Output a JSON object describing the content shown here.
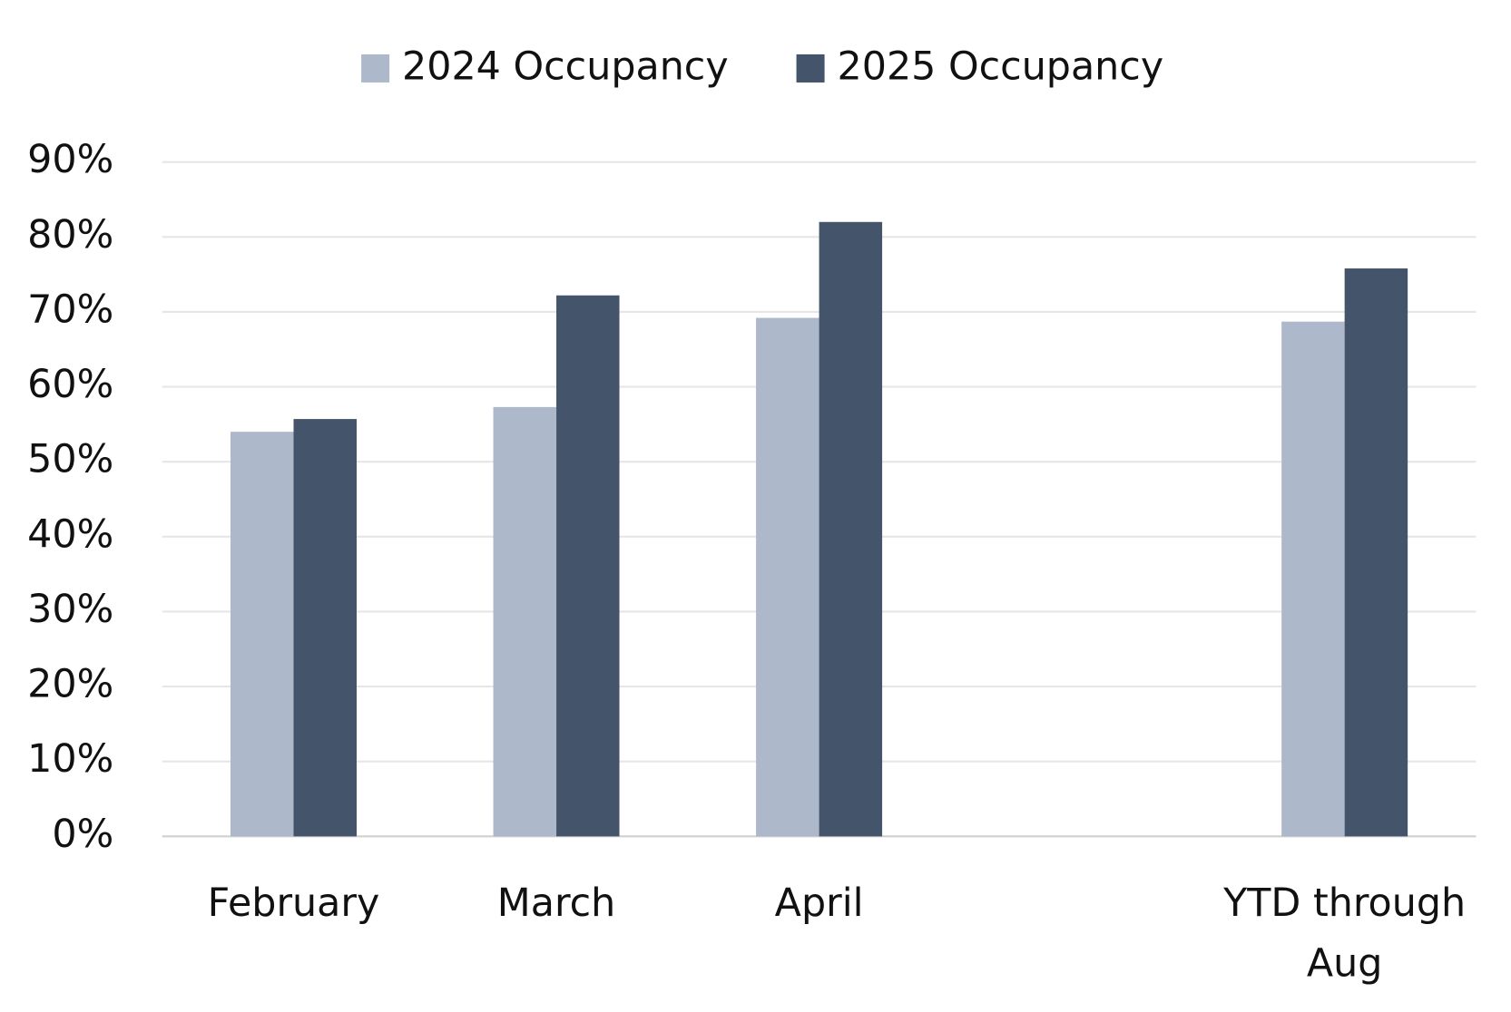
{
  "chart_data": {
    "type": "bar",
    "categories": [
      "February",
      "March",
      "April",
      null,
      "YTD through Aug"
    ],
    "series": [
      {
        "name": "2024 Occupancy",
        "color": "#adb8ca",
        "values": [
          54,
          57.3,
          69.2,
          null,
          68.7
        ]
      },
      {
        "name": "2025 Occupancy",
        "color": "#44546a",
        "values": [
          55.7,
          72.2,
          82,
          null,
          75.8
        ]
      }
    ],
    "ylim": [
      0,
      90
    ],
    "yticks": [
      {
        "value": 0,
        "label": "0%"
      },
      {
        "value": 10,
        "label": "10%"
      },
      {
        "value": 20,
        "label": "20%"
      },
      {
        "value": 30,
        "label": "30%"
      },
      {
        "value": 40,
        "label": "40%"
      },
      {
        "value": 50,
        "label": "50%"
      },
      {
        "value": 60,
        "label": "60%"
      },
      {
        "value": 70,
        "label": "70%"
      },
      {
        "value": 80,
        "label": "80%"
      },
      {
        "value": 90,
        "label": "90%"
      }
    ],
    "grid": true,
    "legend": "top"
  }
}
